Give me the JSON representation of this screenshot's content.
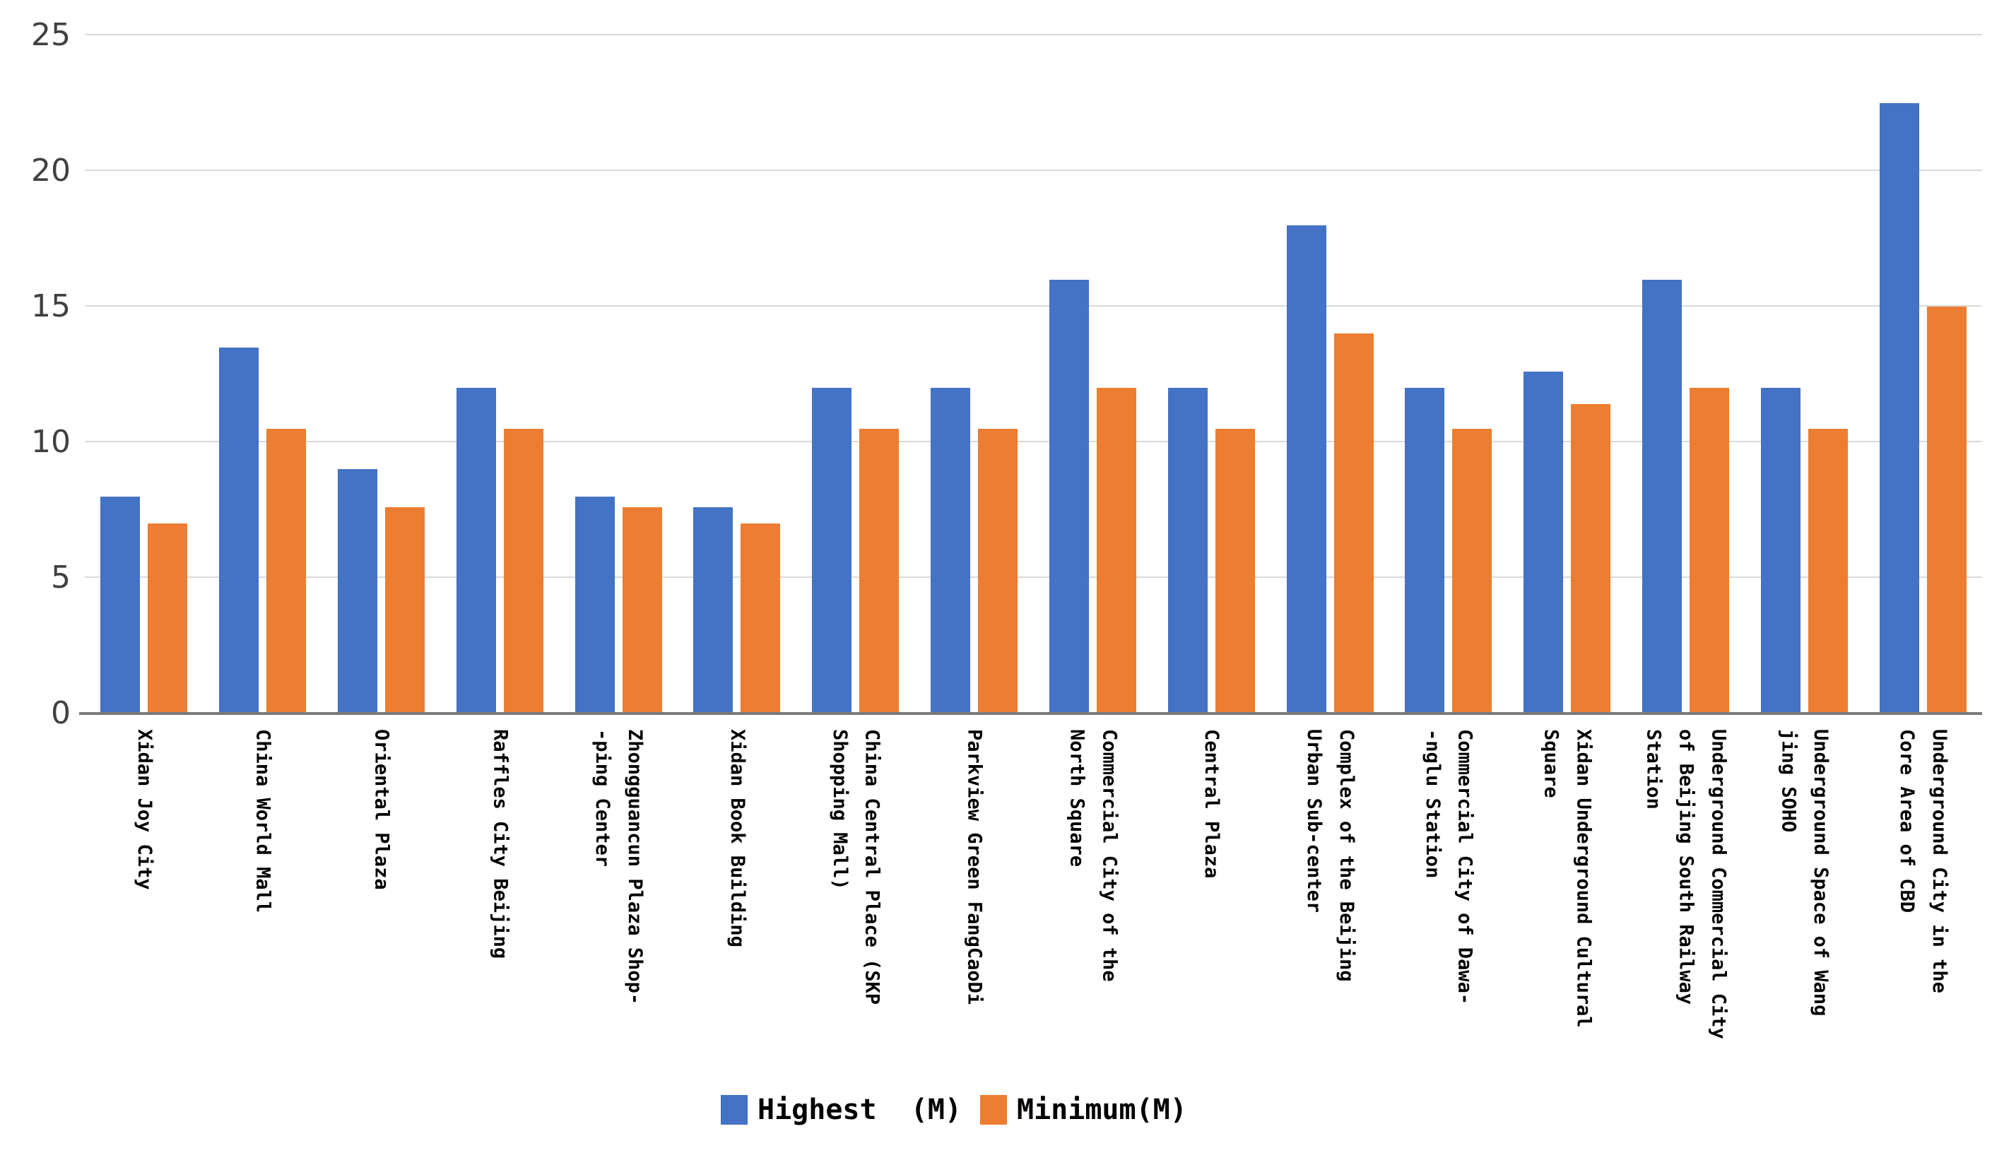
{
  "chart_data": {
    "type": "bar",
    "title": "",
    "xlabel": "",
    "ylabel": "",
    "ylim": [
      0,
      25
    ],
    "y_ticks": [
      0,
      5,
      10,
      15,
      20,
      25
    ],
    "grid": "horizontal",
    "legend_position": "bottom",
    "categories": [
      "Xidan Joy City",
      "China World Mall",
      "Oriental Plaza",
      "Raffles City Beijing",
      "Zhongguancun Plaza Shop-\n-ping Center",
      "Xidan Book Building",
      "China Central Place (SKP\nShopping Mall)",
      "Parkview Green FangCaoDi",
      "Commercial City of the\nNorth Square",
      "Central Plaza",
      "Complex of the Beijing\nUrban Sub-center",
      "Commercial City of Dawa-\n-nglu Station",
      "Xidan Underground Cultural\nSquare",
      "Underground Commercial City\nof Beijing South Railway Station",
      "Underground Space of Wang\njing SOHO",
      "Underground City in the\nCore Area of CBD"
    ],
    "series": [
      {
        "name": "Highest  (M)",
        "color": "#4472C4",
        "values": [
          8,
          13.5,
          9,
          12,
          8,
          7.6,
          12,
          12,
          16,
          12,
          18,
          12,
          12.6,
          16,
          12,
          22.5
        ]
      },
      {
        "name": "Minimum(M)",
        "color": "#ED7D31",
        "values": [
          7,
          10.5,
          7.6,
          10.5,
          7.6,
          7,
          10.5,
          10.5,
          12,
          10.5,
          14,
          10.5,
          11.4,
          12,
          10.5,
          15
        ]
      }
    ],
    "colors": {
      "gridline": "#d9d9d9",
      "axis_line": "#7a7a7a",
      "y_tick_text": "#404040",
      "x_label_text": "#000000"
    }
  }
}
